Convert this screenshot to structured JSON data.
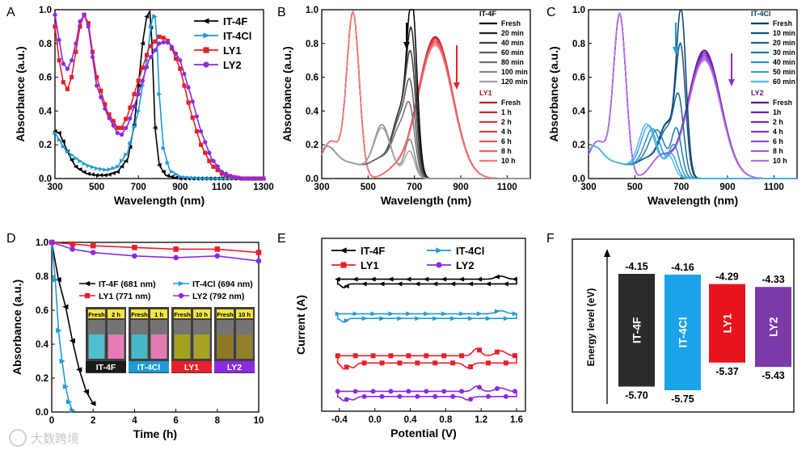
{
  "chart_data": [
    {
      "panel": "A",
      "type": "line",
      "xlabel": "Wavelength (nm)",
      "ylabel": "Absorbance (a.u.)",
      "xlim": [
        300,
        1300
      ],
      "ylim": [
        0,
        1.0
      ],
      "xticks": [
        300,
        500,
        700,
        900,
        1100,
        1300
      ],
      "yticks": [
        0.0,
        0.2,
        0.4,
        0.6,
        0.8,
        1.0
      ],
      "legend_position": "top-right",
      "series": [
        {
          "name": "IT-4F",
          "color": "#000000",
          "marker": "tri-left",
          "x": [
            300,
            320,
            340,
            360,
            380,
            400,
            450,
            500,
            550,
            600,
            650,
            680,
            700,
            720,
            740,
            755,
            765,
            780,
            800,
            830,
            860,
            900,
            1000,
            1100,
            1200,
            1300
          ],
          "y": [
            0.28,
            0.27,
            0.22,
            0.16,
            0.11,
            0.07,
            0.03,
            0.02,
            0.02,
            0.04,
            0.12,
            0.32,
            0.55,
            0.8,
            0.96,
            0.99,
            0.8,
            0.3,
            0.08,
            0.02,
            0.01,
            0,
            0,
            0,
            0,
            0
          ]
        },
        {
          "name": "IT-4Cl",
          "color": "#1e9ad6",
          "marker": "tri-right",
          "x": [
            300,
            320,
            350,
            400,
            450,
            500,
            550,
            600,
            650,
            700,
            740,
            760,
            770,
            780,
            790,
            800,
            820,
            850,
            900,
            1000,
            1100,
            1200,
            1300
          ],
          "y": [
            0.27,
            0.23,
            0.17,
            0.12,
            0.08,
            0.06,
            0.05,
            0.07,
            0.16,
            0.4,
            0.7,
            0.9,
            0.97,
            0.96,
            0.8,
            0.5,
            0.18,
            0.05,
            0.01,
            0,
            0,
            0,
            0
          ]
        },
        {
          "name": "LY1",
          "color": "#e8202a",
          "marker": "square",
          "x": [
            300,
            320,
            340,
            360,
            380,
            400,
            420,
            440,
            460,
            480,
            500,
            550,
            600,
            620,
            650,
            700,
            750,
            800,
            830,
            850,
            900,
            950,
            1000,
            1050,
            1100,
            1150,
            1200,
            1300
          ],
          "y": [
            0.9,
            0.7,
            0.57,
            0.53,
            0.6,
            0.75,
            0.9,
            0.97,
            0.92,
            0.75,
            0.6,
            0.4,
            0.3,
            0.3,
            0.38,
            0.58,
            0.77,
            0.84,
            0.83,
            0.8,
            0.65,
            0.4,
            0.2,
            0.08,
            0.03,
            0.01,
            0,
            0
          ]
        },
        {
          "name": "LY2",
          "color": "#8a2be2",
          "marker": "circle",
          "x": [
            300,
            320,
            340,
            360,
            380,
            400,
            420,
            440,
            460,
            480,
            500,
            550,
            600,
            620,
            650,
            700,
            750,
            800,
            830,
            850,
            900,
            950,
            1000,
            1050,
            1100,
            1150,
            1200,
            1300
          ],
          "y": [
            0.97,
            0.82,
            0.68,
            0.65,
            0.7,
            0.8,
            0.93,
            0.97,
            0.9,
            0.72,
            0.55,
            0.38,
            0.27,
            0.26,
            0.32,
            0.5,
            0.7,
            0.8,
            0.81,
            0.8,
            0.7,
            0.5,
            0.28,
            0.12,
            0.04,
            0.01,
            0,
            0
          ]
        }
      ]
    },
    {
      "panel": "B",
      "type": "line",
      "xlabel": "Wavelength (nm)",
      "ylabel": "Absorbance (a.u.)",
      "xlim": [
        300,
        1200
      ],
      "ylim": [
        0,
        1.0
      ],
      "xticks": [
        300,
        500,
        700,
        900,
        1100
      ],
      "yticks": [
        0.0,
        0.2,
        0.4,
        0.6,
        0.8,
        1.0
      ],
      "legend_groups": [
        {
          "title": "IT-4F",
          "entries": [
            "Fresh",
            "20 min",
            "40 min",
            "60 min",
            "80 min",
            "100 min",
            "120 min"
          ]
        },
        {
          "title": "LY1",
          "entries": [
            "Fresh",
            "1 h",
            "2 h",
            "4 h",
            "6 h",
            "8 h",
            "10 h"
          ]
        }
      ],
      "series": [
        {
          "name": "Fresh",
          "group": "IT-4F",
          "color": "#000000",
          "peak_x": 690,
          "peak_y": 0.97,
          "shoulder_x": 640,
          "shoulder_y": 0.55
        },
        {
          "name": "20 min",
          "group": "IT-4F",
          "color": "#222222",
          "peak_x": 688,
          "peak_y": 0.77,
          "shoulder_x": 640,
          "shoulder_y": 0.56
        },
        {
          "name": "40 min",
          "group": "IT-4F",
          "color": "#404040",
          "peak_x": 686,
          "peak_y": 0.62,
          "shoulder_x": 640,
          "shoulder_y": 0.55
        },
        {
          "name": "60 min",
          "group": "IT-4F",
          "color": "#5a5a5a",
          "peak_x": 684,
          "peak_y": 0.45,
          "shoulder_x": 640,
          "shoulder_y": 0.5
        },
        {
          "name": "80 min",
          "group": "IT-4F",
          "color": "#707070",
          "peak_x": 682,
          "peak_y": 0.32,
          "shoulder_x": 640,
          "shoulder_y": 0.42
        },
        {
          "name": "100 min",
          "group": "IT-4F",
          "color": "#888888",
          "peak_x": 680,
          "peak_y": 0.22,
          "shoulder_x": 560,
          "shoulder_y": 0.33
        },
        {
          "name": "120 min",
          "group": "IT-4F",
          "color": "#a0a0a0",
          "peak_x": 680,
          "peak_y": 0.15,
          "shoulder_x": 560,
          "shoulder_y": 0.3
        },
        {
          "name": "Fresh",
          "group": "LY1",
          "color": "#b0202a",
          "peak_x": 790,
          "peak_y": 0.84
        },
        {
          "name": "1 h",
          "group": "LY1",
          "color": "#c42a33",
          "peak_x": 790,
          "peak_y": 0.835
        },
        {
          "name": "2 h",
          "group": "LY1",
          "color": "#d4353e",
          "peak_x": 790,
          "peak_y": 0.83
        },
        {
          "name": "4 h",
          "group": "LY1",
          "color": "#e04249",
          "peak_x": 790,
          "peak_y": 0.82
        },
        {
          "name": "6 h",
          "group": "LY1",
          "color": "#ea5258",
          "peak_x": 790,
          "peak_y": 0.81
        },
        {
          "name": "8 h",
          "group": "LY1",
          "color": "#f06468",
          "peak_x": 790,
          "peak_y": 0.8
        },
        {
          "name": "10 h",
          "group": "LY1",
          "color": "#f5787b",
          "peak_x": 790,
          "peak_y": 0.79
        }
      ]
    },
    {
      "panel": "C",
      "type": "line",
      "xlabel": "Wavelength (nm)",
      "ylabel": "Absorbance (a.u.)",
      "xlim": [
        300,
        1200
      ],
      "ylim": [
        0,
        1.0
      ],
      "xticks": [
        300,
        500,
        700,
        900,
        1100
      ],
      "yticks": [
        0.0,
        0.2,
        0.4,
        0.6,
        0.8,
        1.0
      ],
      "legend_groups": [
        {
          "title": "IT-4Cl",
          "entries": [
            "Fresh",
            "10 min",
            "20 min",
            "30 min",
            "40 min",
            "50 min",
            "60 min"
          ]
        },
        {
          "title": "LY2",
          "entries": [
            "Fresh",
            "1h",
            "2 h",
            "4 h",
            "6 h",
            "8 h",
            "10 h"
          ]
        }
      ],
      "series": [
        {
          "name": "Fresh",
          "group": "IT-4Cl",
          "color": "#0d3d66",
          "peak_x": 700,
          "peak_y": 0.96,
          "shoulder_x": 640,
          "shoulder_y": 0.45
        },
        {
          "name": "10 min",
          "group": "IT-4Cl",
          "color": "#11507f",
          "peak_x": 698,
          "peak_y": 0.74,
          "shoulder_x": 640,
          "shoulder_y": 0.46
        },
        {
          "name": "20 min",
          "group": "IT-4Cl",
          "color": "#176598",
          "peak_x": 690,
          "peak_y": 0.42,
          "shoulder_x": 640,
          "shoulder_y": 0.4
        },
        {
          "name": "30 min",
          "group": "IT-4Cl",
          "color": "#1e7bb2",
          "peak_x": 680,
          "peak_y": 0.28,
          "shoulder_x": 600,
          "shoulder_y": 0.32
        },
        {
          "name": "40 min",
          "group": "IT-4Cl",
          "color": "#2a92c9",
          "peak_x": 670,
          "peak_y": 0.18,
          "shoulder_x": 580,
          "shoulder_y": 0.3
        },
        {
          "name": "50 min",
          "group": "IT-4Cl",
          "color": "#3aa6dc",
          "peak_x": 660,
          "peak_y": 0.12,
          "shoulder_x": 560,
          "shoulder_y": 0.32
        },
        {
          "name": "60 min",
          "group": "IT-4Cl",
          "color": "#52b8ea",
          "peak_x": 650,
          "peak_y": 0.1,
          "shoulder_x": 550,
          "shoulder_y": 0.34
        },
        {
          "name": "Fresh",
          "group": "LY2",
          "color": "#5a1a8a",
          "peak_x": 800,
          "peak_y": 0.76
        },
        {
          "name": "1h",
          "group": "LY2",
          "color": "#6a22a0",
          "peak_x": 800,
          "peak_y": 0.75
        },
        {
          "name": "2 h",
          "group": "LY2",
          "color": "#7a2ab5",
          "peak_x": 800,
          "peak_y": 0.74
        },
        {
          "name": "4 h",
          "group": "LY2",
          "color": "#8a36c6",
          "peak_x": 800,
          "peak_y": 0.73
        },
        {
          "name": "6 h",
          "group": "LY2",
          "color": "#9846d2",
          "peak_x": 800,
          "peak_y": 0.72
        },
        {
          "name": "8 h",
          "group": "LY2",
          "color": "#a65adc",
          "peak_x": 800,
          "peak_y": 0.71
        },
        {
          "name": "10 h",
          "group": "LY2",
          "color": "#b470e4",
          "peak_x": 800,
          "peak_y": 0.7
        }
      ]
    },
    {
      "panel": "D",
      "type": "line",
      "xlabel": "Time (h)",
      "ylabel": "Absorbance (a.u.)",
      "xlim": [
        0,
        10
      ],
      "ylim": [
        0,
        1.0
      ],
      "xticks": [
        0,
        2,
        4,
        6,
        8,
        10
      ],
      "yticks": [
        0.0,
        0.2,
        0.4,
        0.6,
        0.8,
        1.0
      ],
      "series": [
        {
          "name": "IT-4F (681 nm)",
          "color": "#000000",
          "marker": "tri-left",
          "x": [
            0,
            0.33,
            0.67,
            1.0,
            1.33,
            1.67,
            2.0
          ],
          "y": [
            1.0,
            0.78,
            0.62,
            0.42,
            0.25,
            0.12,
            0.05
          ]
        },
        {
          "name": "IT-4Cl (694 nm)",
          "color": "#1e9ad6",
          "marker": "tri-right",
          "x": [
            0,
            0.17,
            0.33,
            0.5,
            0.67,
            0.83,
            1.0
          ],
          "y": [
            1.0,
            0.78,
            0.48,
            0.3,
            0.15,
            0.06,
            0.01
          ]
        },
        {
          "name": "LY1 (771 nm)",
          "color": "#e8202a",
          "marker": "square",
          "x": [
            0,
            1,
            2,
            4,
            6,
            8,
            10
          ],
          "y": [
            1.0,
            0.99,
            0.98,
            0.97,
            0.96,
            0.96,
            0.94
          ]
        },
        {
          "name": "LY2 (792 nm)",
          "color": "#8a2be2",
          "marker": "circle",
          "x": [
            0,
            1,
            2,
            4,
            6,
            8,
            10
          ],
          "y": [
            1.0,
            0.96,
            0.94,
            0.92,
            0.91,
            0.92,
            0.89
          ]
        }
      ],
      "inset_photos": [
        {
          "caption": "IT-4F",
          "caption_color": "#1a1a1a",
          "labels": [
            "Fresh",
            "2 h"
          ],
          "colors": [
            "#4fc0cf",
            "#e87ab8"
          ]
        },
        {
          "caption": "IT-4Cl",
          "caption_color": "#1e9ad6",
          "labels": [
            "Fresh",
            "1 h"
          ],
          "colors": [
            "#46b9c9",
            "#e27ab6"
          ]
        },
        {
          "caption": "LY1",
          "caption_color": "#e8202a",
          "labels": [
            "Fresh",
            "10 h"
          ],
          "colors": [
            "#a3a21d",
            "#a7a423"
          ]
        },
        {
          "caption": "LY2",
          "caption_color": "#8a2be2",
          "labels": [
            "Fresh",
            "10 h"
          ],
          "colors": [
            "#8e7a25",
            "#92802a"
          ]
        }
      ]
    },
    {
      "panel": "E",
      "type": "line",
      "xlabel": "Potential (V)",
      "ylabel": "Current (A)",
      "xlim": [
        -0.6,
        1.7
      ],
      "xticks": [
        -0.4,
        0.0,
        0.4,
        0.8,
        1.2,
        1.6
      ],
      "xtick_labels": [
        "-0.4",
        "0.0",
        "0.4",
        "0.8",
        "1.2",
        "1.6"
      ],
      "series": [
        {
          "name": "IT-4F",
          "color": "#000000",
          "marker": "tri-left"
        },
        {
          "name": "IT-4Cl",
          "color": "#1e9ad6",
          "marker": "tri-right"
        },
        {
          "name": "LY1",
          "color": "#e8202a",
          "marker": "square"
        },
        {
          "name": "LY2",
          "color": "#8a2be2",
          "marker": "circle"
        }
      ]
    },
    {
      "panel": "F",
      "type": "bar",
      "ylabel": "Energy level (eV)",
      "categories": [
        "IT-4F",
        "IT-4Cl",
        "LY1",
        "LY2"
      ],
      "lumo": [
        -4.15,
        -4.16,
        -4.29,
        -4.33
      ],
      "homo": [
        -5.7,
        -5.75,
        -5.37,
        -5.43
      ],
      "lumo_labels": [
        "-4.15",
        "-4.16",
        "-4.29",
        "-4.33"
      ],
      "homo_labels": [
        "-5.70",
        "-5.75",
        "-5.37",
        "-5.43"
      ],
      "colors": [
        "#2b2b2b",
        "#1aa3e8",
        "#e8141c",
        "#7a3aa8"
      ]
    }
  ],
  "panel_letters": [
    "A",
    "B",
    "C",
    "D",
    "E",
    "F"
  ],
  "watermark": "大数跨境"
}
